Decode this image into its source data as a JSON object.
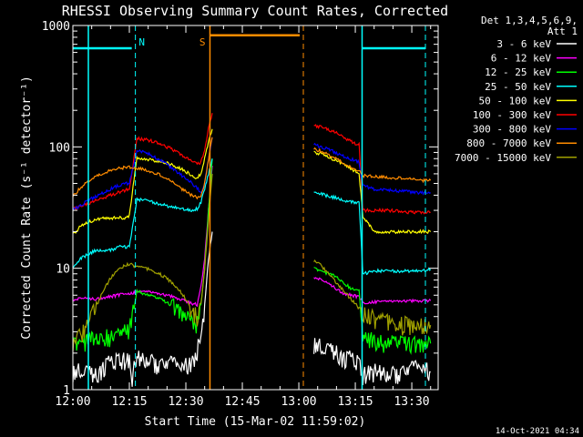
{
  "chart_data": {
    "type": "line",
    "title": "RHESSI Observing Summary Count Rates, Corrected",
    "xlabel": "Start Time (15-Mar-02 11:59:02)",
    "ylabel": "Corrected Count Rate (s⁻¹ detector⁻¹)",
    "x_unit": "minutes after 12:00 UT",
    "xlim": [
      0,
      97
    ],
    "ylim": [
      1,
      1000
    ],
    "yscale": "log",
    "x_ticks": [
      {
        "x": 0,
        "label": "12:00"
      },
      {
        "x": 15,
        "label": "12:15"
      },
      {
        "x": 30,
        "label": "12:30"
      },
      {
        "x": 45,
        "label": "12:45"
      },
      {
        "x": 60,
        "label": "13:00"
      },
      {
        "x": 75,
        "label": "13:15"
      },
      {
        "x": 90,
        "label": "13:30"
      }
    ],
    "y_ticks": [
      {
        "y": 1,
        "label": "1"
      },
      {
        "y": 10,
        "label": "10"
      },
      {
        "y": 100,
        "label": "100"
      },
      {
        "y": 1000,
        "label": "1000"
      }
    ],
    "legend_position": "right",
    "legend_header": [
      "Det 1,3,4,5,6,9,",
      "Att 1"
    ],
    "timestamp": "14-Oct-2021 04:34",
    "gap": [
      37,
      61
    ],
    "night_markers": [
      {
        "type": "N",
        "start": 16.6,
        "end": 76.8,
        "level": 650,
        "color": "#00ffff",
        "label_x": 18.3
      },
      {
        "type": "S",
        "start": 36.4,
        "end": 61.2,
        "level": 830,
        "color": "#ff8c00",
        "label_x": 34.4
      }
    ],
    "series": [
      {
        "name": "3 - 6 keV",
        "color": "#ffffff",
        "values": [
          [
            0,
            1.4
          ],
          [
            3,
            1.5
          ],
          [
            6,
            1.3
          ],
          [
            9,
            1.6
          ],
          [
            12,
            1.8
          ],
          [
            14,
            1.7
          ],
          [
            15,
            1.7
          ],
          [
            15.5,
            1.2
          ],
          [
            17,
            1.8
          ],
          [
            20,
            1.7
          ],
          [
            23,
            1.6
          ],
          [
            26,
            1.6
          ],
          [
            29,
            1.5
          ],
          [
            32,
            1.7
          ],
          [
            34,
            2.6
          ],
          [
            35,
            5
          ],
          [
            36,
            12
          ],
          [
            37,
            20
          ],
          [
            null,
            null
          ],
          [
            64,
            2.4
          ],
          [
            66,
            2.3
          ],
          [
            68,
            2.2
          ],
          [
            70,
            2.0
          ],
          [
            72,
            1.8
          ],
          [
            74,
            1.8
          ],
          [
            76,
            1.7
          ],
          [
            77,
            1.3
          ],
          [
            80,
            1.4
          ],
          [
            84,
            1.3
          ],
          [
            88,
            1.4
          ],
          [
            92,
            1.5
          ],
          [
            95,
            1.4
          ]
        ]
      },
      {
        "name": "6 - 12 keV",
        "color": "#ff00ff",
        "values": [
          [
            0,
            5.5
          ],
          [
            3,
            5.7
          ],
          [
            6,
            5.6
          ],
          [
            9,
            5.8
          ],
          [
            12,
            6.0
          ],
          [
            14,
            6.3
          ],
          [
            15,
            6.2
          ],
          [
            17,
            6.4
          ],
          [
            20,
            6.5
          ],
          [
            23,
            6.2
          ],
          [
            26,
            5.9
          ],
          [
            29,
            5.5
          ],
          [
            31,
            5.2
          ],
          [
            33,
            5.0
          ],
          [
            34,
            7
          ],
          [
            35,
            12
          ],
          [
            36,
            30
          ],
          [
            37,
            70
          ],
          [
            null,
            null
          ],
          [
            64,
            8.5
          ],
          [
            66,
            8.0
          ],
          [
            68,
            7.5
          ],
          [
            70,
            6.8
          ],
          [
            72,
            6.2
          ],
          [
            74,
            6.0
          ],
          [
            76,
            5.8
          ],
          [
            77,
            5.2
          ],
          [
            80,
            5.3
          ],
          [
            84,
            5.4
          ],
          [
            88,
            5.4
          ],
          [
            92,
            5.4
          ],
          [
            95,
            5.4
          ]
        ]
      },
      {
        "name": "12 - 25 keV",
        "color": "#00ff00",
        "values": [
          [
            0,
            2.4
          ],
          [
            3,
            2.5
          ],
          [
            6,
            2.6
          ],
          [
            9,
            2.7
          ],
          [
            12,
            2.8
          ],
          [
            14,
            3.0
          ],
          [
            15,
            3.0
          ],
          [
            17,
            6.5
          ],
          [
            20,
            6.0
          ],
          [
            23,
            5.6
          ],
          [
            26,
            5.0
          ],
          [
            29,
            4.2
          ],
          [
            31,
            3.8
          ],
          [
            33,
            3.5
          ],
          [
            34,
            5
          ],
          [
            35,
            10
          ],
          [
            36,
            30
          ],
          [
            37,
            80
          ],
          [
            null,
            null
          ],
          [
            64,
            10
          ],
          [
            66,
            9.5
          ],
          [
            68,
            9
          ],
          [
            70,
            8.5
          ],
          [
            72,
            7.5
          ],
          [
            74,
            6.8
          ],
          [
            76,
            6.5
          ],
          [
            77,
            2.6
          ],
          [
            80,
            2.5
          ],
          [
            84,
            2.4
          ],
          [
            88,
            2.4
          ],
          [
            92,
            2.3
          ],
          [
            95,
            2.4
          ]
        ]
      },
      {
        "name": "25 - 50 keV",
        "color": "#00ffff",
        "values": [
          [
            0,
            10
          ],
          [
            2,
            12
          ],
          [
            4,
            13
          ],
          [
            6,
            14
          ],
          [
            8,
            14
          ],
          [
            10,
            14
          ],
          [
            12,
            15
          ],
          [
            14,
            15
          ],
          [
            15,
            15
          ],
          [
            17,
            37
          ],
          [
            20,
            36
          ],
          [
            23,
            34
          ],
          [
            26,
            32
          ],
          [
            29,
            31
          ],
          [
            31,
            30
          ],
          [
            33,
            31
          ],
          [
            34,
            35
          ],
          [
            35,
            45
          ],
          [
            36,
            60
          ],
          [
            37,
            80
          ],
          [
            null,
            null
          ],
          [
            64,
            42
          ],
          [
            66,
            41
          ],
          [
            68,
            39
          ],
          [
            70,
            38
          ],
          [
            72,
            36
          ],
          [
            74,
            35
          ],
          [
            76,
            35
          ],
          [
            77,
            9
          ],
          [
            80,
            9.5
          ],
          [
            84,
            9.5
          ],
          [
            88,
            9.5
          ],
          [
            92,
            9.5
          ],
          [
            95,
            9.8
          ]
        ]
      },
      {
        "name": "50 - 100 keV",
        "color": "#ffff00",
        "values": [
          [
            0,
            19
          ],
          [
            2,
            22
          ],
          [
            4,
            24
          ],
          [
            6,
            25
          ],
          [
            8,
            26
          ],
          [
            10,
            26
          ],
          [
            12,
            26
          ],
          [
            14,
            26
          ],
          [
            15,
            27
          ],
          [
            17,
            82
          ],
          [
            20,
            79
          ],
          [
            23,
            76
          ],
          [
            26,
            72
          ],
          [
            29,
            65
          ],
          [
            31,
            60
          ],
          [
            33,
            55
          ],
          [
            34,
            60
          ],
          [
            35,
            80
          ],
          [
            36,
            110
          ],
          [
            37,
            140
          ],
          [
            null,
            null
          ],
          [
            64,
            90
          ],
          [
            66,
            88
          ],
          [
            68,
            82
          ],
          [
            70,
            77
          ],
          [
            72,
            72
          ],
          [
            74,
            66
          ],
          [
            76,
            60
          ],
          [
            77,
            27
          ],
          [
            80,
            20
          ],
          [
            84,
            20
          ],
          [
            88,
            20
          ],
          [
            92,
            20
          ],
          [
            95,
            20
          ]
        ]
      },
      {
        "name": "100 - 300 keV",
        "color": "#ff0000",
        "values": [
          [
            0,
            31
          ],
          [
            2,
            32
          ],
          [
            4,
            34
          ],
          [
            6,
            36
          ],
          [
            8,
            38
          ],
          [
            10,
            40
          ],
          [
            12,
            42
          ],
          [
            14,
            44
          ],
          [
            15,
            45
          ],
          [
            17,
            117
          ],
          [
            20,
            114
          ],
          [
            23,
            106
          ],
          [
            26,
            97
          ],
          [
            29,
            86
          ],
          [
            31,
            78
          ],
          [
            33,
            72
          ],
          [
            34,
            75
          ],
          [
            35,
            95
          ],
          [
            36,
            140
          ],
          [
            37,
            190
          ],
          [
            null,
            null
          ],
          [
            64,
            150
          ],
          [
            66,
            145
          ],
          [
            68,
            138
          ],
          [
            70,
            130
          ],
          [
            72,
            120
          ],
          [
            74,
            110
          ],
          [
            76,
            104
          ],
          [
            77,
            30
          ],
          [
            80,
            30
          ],
          [
            84,
            30
          ],
          [
            88,
            29
          ],
          [
            92,
            29
          ],
          [
            95,
            29
          ]
        ]
      },
      {
        "name": "300 - 800 keV",
        "color": "#0000ff",
        "values": [
          [
            0,
            30
          ],
          [
            2,
            33
          ],
          [
            4,
            36
          ],
          [
            6,
            39
          ],
          [
            8,
            42
          ],
          [
            10,
            45
          ],
          [
            12,
            48
          ],
          [
            14,
            50
          ],
          [
            15,
            50
          ],
          [
            17,
            94
          ],
          [
            20,
            88
          ],
          [
            23,
            78
          ],
          [
            26,
            68
          ],
          [
            29,
            58
          ],
          [
            31,
            52
          ],
          [
            33,
            46
          ],
          [
            34,
            42
          ],
          [
            35,
            50
          ],
          [
            36,
            80
          ],
          [
            37,
            120
          ],
          [
            null,
            null
          ],
          [
            64,
            104
          ],
          [
            66,
            100
          ],
          [
            68,
            95
          ],
          [
            70,
            89
          ],
          [
            72,
            84
          ],
          [
            74,
            79
          ],
          [
            76,
            75
          ],
          [
            77,
            48
          ],
          [
            80,
            45
          ],
          [
            84,
            44
          ],
          [
            88,
            43
          ],
          [
            92,
            42
          ],
          [
            95,
            42
          ]
        ]
      },
      {
        "name": "800 - 7000 keV",
        "color": "#ff8c00",
        "values": [
          [
            0,
            39
          ],
          [
            2,
            46
          ],
          [
            4,
            52
          ],
          [
            6,
            57
          ],
          [
            8,
            61
          ],
          [
            10,
            64
          ],
          [
            12,
            66
          ],
          [
            14,
            68
          ],
          [
            15,
            68
          ],
          [
            17,
            67
          ],
          [
            20,
            64
          ],
          [
            23,
            59
          ],
          [
            26,
            52
          ],
          [
            29,
            45
          ],
          [
            31,
            41
          ],
          [
            33,
            38
          ],
          [
            34,
            40
          ],
          [
            35,
            50
          ],
          [
            36,
            80
          ],
          [
            37,
            120
          ],
          [
            null,
            null
          ],
          [
            64,
            96
          ],
          [
            66,
            92
          ],
          [
            68,
            86
          ],
          [
            70,
            80
          ],
          [
            72,
            74
          ],
          [
            74,
            67
          ],
          [
            76,
            63
          ],
          [
            77,
            58
          ],
          [
            80,
            57
          ],
          [
            84,
            56
          ],
          [
            88,
            55
          ],
          [
            92,
            53
          ],
          [
            95,
            53
          ]
        ]
      },
      {
        "name": "7000 - 15000 keV",
        "color": "#a0a000",
        "values": [
          [
            0,
            2.3
          ],
          [
            2,
            2.8
          ],
          [
            4,
            3.6
          ],
          [
            6,
            4.6
          ],
          [
            8,
            6.5
          ],
          [
            10,
            8.3
          ],
          [
            12,
            9.8
          ],
          [
            14,
            10.6
          ],
          [
            15,
            10.8
          ],
          [
            17,
            10.3
          ],
          [
            20,
            9.8
          ],
          [
            23,
            9.0
          ],
          [
            26,
            7.8
          ],
          [
            29,
            6.2
          ],
          [
            31,
            5.0
          ],
          [
            33,
            3.9
          ],
          [
            34,
            5
          ],
          [
            35,
            10
          ],
          [
            36,
            25
          ],
          [
            37,
            60
          ],
          [
            null,
            null
          ],
          [
            64,
            11.5
          ],
          [
            66,
            10.5
          ],
          [
            68,
            9
          ],
          [
            70,
            7.5
          ],
          [
            72,
            6.5
          ],
          [
            74,
            5.5
          ],
          [
            76,
            4.8
          ],
          [
            77,
            4.2
          ],
          [
            80,
            3.8
          ],
          [
            84,
            3.5
          ],
          [
            88,
            3.4
          ],
          [
            92,
            3.4
          ],
          [
            95,
            3.4
          ]
        ]
      }
    ]
  }
}
